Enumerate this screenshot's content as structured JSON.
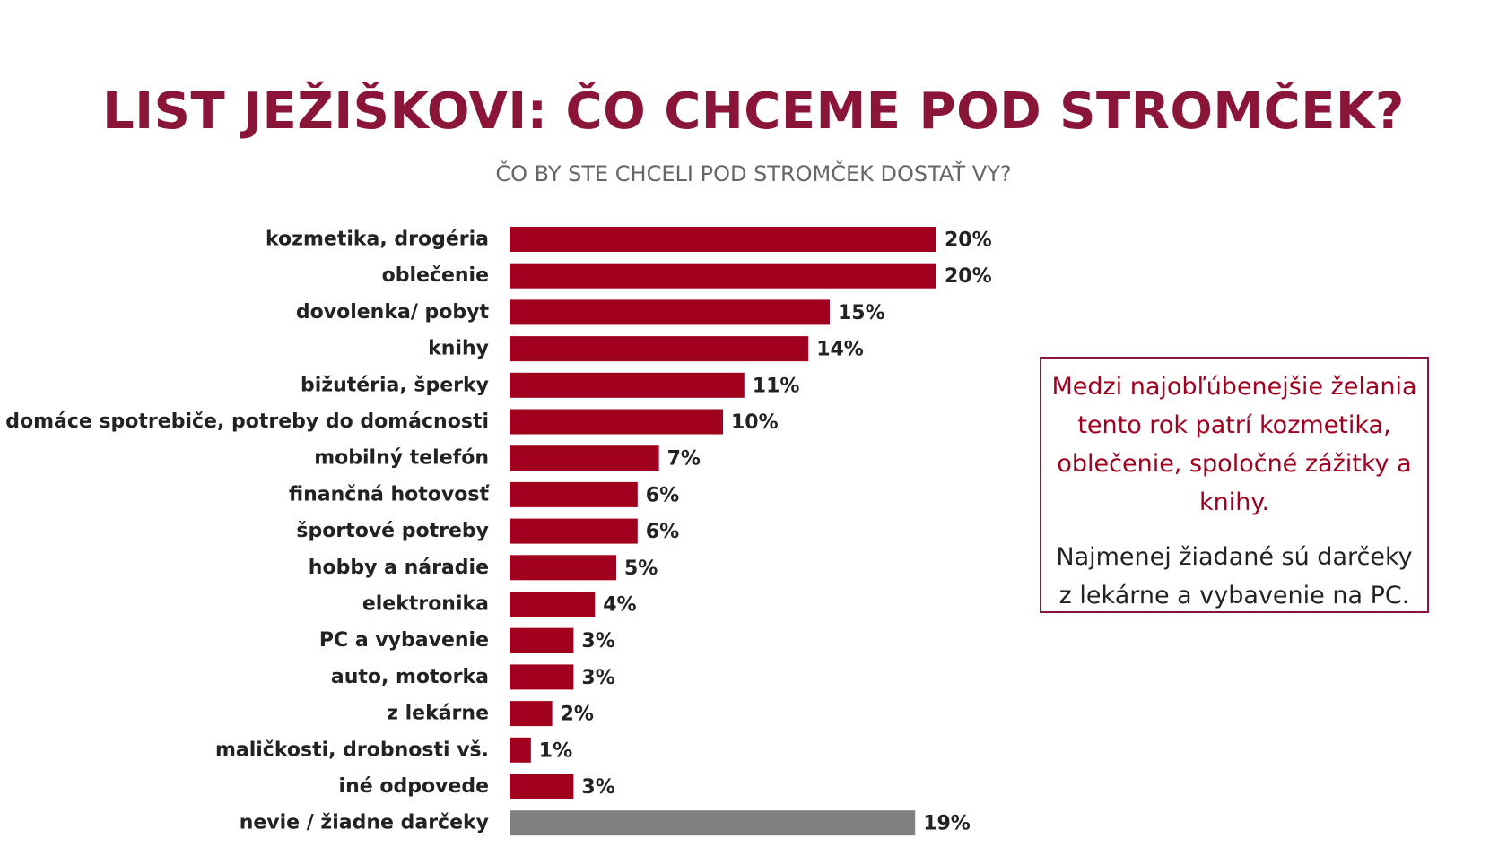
{
  "header": {
    "title": "LIST JEŽIŠKOVI: ČO CHCEME POD STROMČEK?",
    "subtitle": "ČO BY STE CHCELI POD STROMČEK DOSTAŤ VY?"
  },
  "callout": {
    "highlight": "Medzi najobľúbenejšie želania tento rok patrí kozmetika, oblečenie, spoločné zážitky a knihy.",
    "note": "Najmenej žiadané sú darčeky z lekárne a vybavenie na PC."
  },
  "colors": {
    "primary_bar": "#a0001e",
    "neutral_bar": "#808080",
    "title": "#8b1538"
  },
  "chart_data": {
    "type": "bar",
    "orientation": "horizontal",
    "title": "LIST JEŽIŠKOVI: ČO CHCEME POD STROMČEK?",
    "subtitle": "ČO BY STE CHCELI POD STROMČEK DOSTAŤ VY?",
    "xlabel": "",
    "ylabel": "",
    "xlim": [
      0,
      20
    ],
    "categories": [
      "kozmetika, drogéria",
      "oblečenie",
      "dovolenka/ pobyt",
      "knihy",
      "bižutéria, šperky",
      "domáce spotrebiče, potreby do domácnosti",
      "mobilný telefón",
      "finančná hotovosť",
      "športové potreby",
      "hobby a náradie",
      "elektronika",
      "PC a vybavenie",
      "auto, motorka",
      "z lekárne",
      "maličkosti, drobnosti vš.",
      "iné odpovede",
      "nevie / žiadne darčeky"
    ],
    "values": [
      20,
      20,
      15,
      14,
      11,
      10,
      7,
      6,
      6,
      5,
      4,
      3,
      3,
      2,
      1,
      3,
      19
    ],
    "value_labels": [
      "20%",
      "20%",
      "15%",
      "14%",
      "11%",
      "10%",
      "7%",
      "6%",
      "6%",
      "5%",
      "4%",
      "3%",
      "3%",
      "2%",
      "1%",
      "3%",
      "19%"
    ],
    "bar_colors": [
      "#a0001e",
      "#a0001e",
      "#a0001e",
      "#a0001e",
      "#a0001e",
      "#a0001e",
      "#a0001e",
      "#a0001e",
      "#a0001e",
      "#a0001e",
      "#a0001e",
      "#a0001e",
      "#a0001e",
      "#a0001e",
      "#a0001e",
      "#a0001e",
      "#808080"
    ],
    "grid": false,
    "legend": "none"
  }
}
